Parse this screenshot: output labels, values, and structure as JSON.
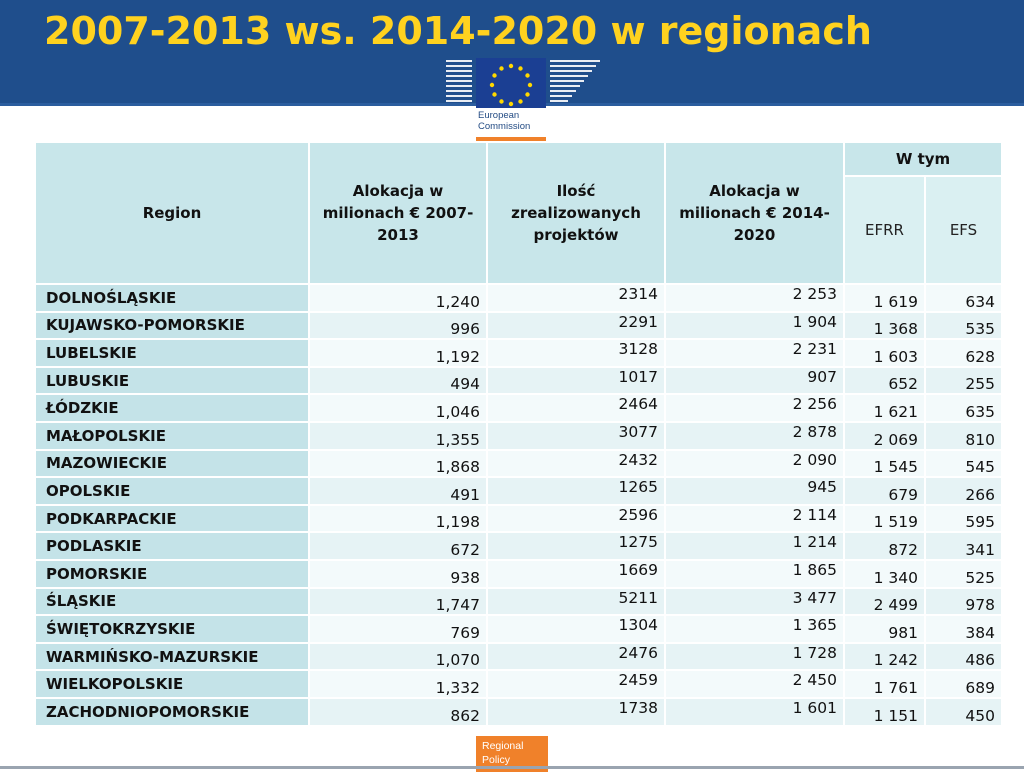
{
  "slide": {
    "title": "2007-2013 ws. 2014-2020 w regionach"
  },
  "logo": {
    "icon": "eu-flag-icon",
    "text_line1": "European",
    "text_line2": "Commission",
    "color": "#f0812a"
  },
  "table": {
    "headers": {
      "region": "Region",
      "alloc_2007": "Alokacja w milionach € 2007-2013",
      "projects": "Ilość zrealizowanych projektów",
      "alloc_2014": "Alokacja w milionach € 2014-2020",
      "w_tym": "W tym",
      "efrr": "EFRR",
      "efs": "EFS"
    },
    "rows": [
      {
        "region": "DOLNOŚLĄSKIE",
        "alloc_2007": "1,240",
        "projects": "2314",
        "alloc_2014": "2 253",
        "efrr": "1 619",
        "efs": "634"
      },
      {
        "region": "KUJAWSKO-POMORSKIE",
        "alloc_2007": "996",
        "projects": "2291",
        "alloc_2014": "1 904",
        "efrr": "1 368",
        "efs": "535"
      },
      {
        "region": "LUBELSKIE",
        "alloc_2007": "1,192",
        "projects": "3128",
        "alloc_2014": "2 231",
        "efrr": "1 603",
        "efs": "628"
      },
      {
        "region": "LUBUSKIE",
        "alloc_2007": "494",
        "projects": "1017",
        "alloc_2014": "907",
        "efrr": "652",
        "efs": "255"
      },
      {
        "region": "ŁÓDZKIE",
        "alloc_2007": "1,046",
        "projects": "2464",
        "alloc_2014": "2 256",
        "efrr": "1 621",
        "efs": "635"
      },
      {
        "region": "MAŁOPOLSKIE",
        "alloc_2007": "1,355",
        "projects": "3077",
        "alloc_2014": "2 878",
        "efrr": "2 069",
        "efs": "810"
      },
      {
        "region": "MAZOWIECKIE",
        "alloc_2007": "1,868",
        "projects": "2432",
        "alloc_2014": "2 090",
        "efrr": "1 545",
        "efs": "545"
      },
      {
        "region": "OPOLSKIE",
        "alloc_2007": "491",
        "projects": "1265",
        "alloc_2014": "945",
        "efrr": "679",
        "efs": "266"
      },
      {
        "region": "PODKARPACKIE",
        "alloc_2007": "1,198",
        "projects": "2596",
        "alloc_2014": "2 114",
        "efrr": "1 519",
        "efs": "595"
      },
      {
        "region": "PODLASKIE",
        "alloc_2007": "672",
        "projects": "1275",
        "alloc_2014": "1 214",
        "efrr": "872",
        "efs": "341"
      },
      {
        "region": "POMORSKIE",
        "alloc_2007": "938",
        "projects": "1669",
        "alloc_2014": "1 865",
        "efrr": "1 340",
        "efs": "525"
      },
      {
        "region": "ŚLĄSKIE",
        "alloc_2007": "1,747",
        "projects": "5211",
        "alloc_2014": "3 477",
        "efrr": "2 499",
        "efs": "978"
      },
      {
        "region": "ŚWIĘTOKRZYSKIE",
        "alloc_2007": "769",
        "projects": "1304",
        "alloc_2014": "1 365",
        "efrr": "981",
        "efs": "384"
      },
      {
        "region": "WARMIŃSKO-MAZURSKIE",
        "alloc_2007": "1,070",
        "projects": "2476",
        "alloc_2014": "1 728",
        "efrr": "1 242",
        "efs": "486"
      },
      {
        "region": "WIELKOPOLSKIE",
        "alloc_2007": "1,332",
        "projects": "2459",
        "alloc_2014": "2 450",
        "efrr": "1 761",
        "efs": "689"
      },
      {
        "region": "ZACHODNIOPOMORSKIE",
        "alloc_2007": "862",
        "projects": "1738",
        "alloc_2014": "1 601",
        "efrr": "1 151",
        "efs": "450"
      }
    ]
  },
  "footer": {
    "tag_line1": "Regional",
    "tag_line2": "Policy",
    "tag_color": "#f0812a"
  }
}
